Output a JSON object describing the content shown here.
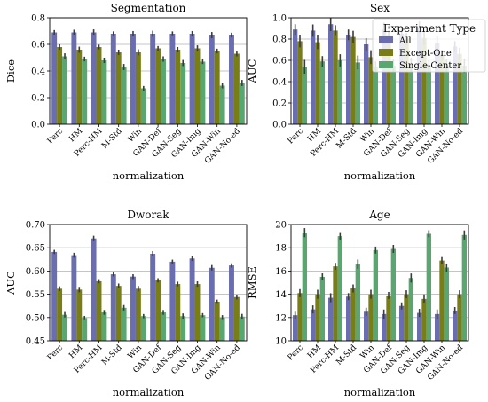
{
  "legend": {
    "title": "Experiment Type",
    "entries": [
      {
        "name": "All",
        "color": "#6a6db0"
      },
      {
        "name": "Except-One",
        "color": "#797d16"
      },
      {
        "name": "Single-Center",
        "color": "#5aa670"
      }
    ]
  },
  "chart_data": [
    {
      "type": "bar",
      "title": "Segmentation",
      "xlabel": "normalization",
      "ylabel": "Dice",
      "ylim": [
        0,
        0.8
      ],
      "yticks": [
        "0.0",
        "0.2",
        "0.4",
        "0.6",
        "0.8"
      ],
      "categories": [
        "Perc",
        "HM",
        "Perc-HM",
        "M-Std",
        "Win",
        "GAN-Def",
        "GAN-Seg",
        "GAN-Img",
        "GAN-Win",
        "GAN-No-ed"
      ],
      "series": [
        {
          "name": "All",
          "values": [
            0.69,
            0.69,
            0.69,
            0.68,
            0.68,
            0.68,
            0.68,
            0.68,
            0.67,
            0.67
          ]
        },
        {
          "name": "Except-One",
          "values": [
            0.58,
            0.56,
            0.58,
            0.54,
            0.54,
            0.57,
            0.56,
            0.57,
            0.55,
            0.53
          ]
        },
        {
          "name": "Single-Center",
          "values": [
            0.51,
            0.49,
            0.48,
            0.43,
            0.27,
            0.49,
            0.46,
            0.47,
            0.29,
            0.31
          ]
        }
      ],
      "grid": true
    },
    {
      "type": "bar",
      "title": "Sex",
      "xlabel": "normalization",
      "ylabel": "AUC",
      "ylim": [
        0.0,
        1.0
      ],
      "yticks": [
        "0.0",
        "0.2",
        "0.4",
        "0.6",
        "0.8",
        "1.0"
      ],
      "categories": [
        "Perc",
        "HM",
        "Perc-HM",
        "M-Std",
        "Win",
        "GAN-Def",
        "GAN-Seg",
        "GAN-Img",
        "GAN-Win",
        "GAN-No-ed"
      ],
      "series": [
        {
          "name": "All",
          "values": [
            0.89,
            0.88,
            0.94,
            0.84,
            0.75,
            0.89,
            0.85,
            0.91,
            0.76,
            0.73
          ]
        },
        {
          "name": "Except-One",
          "values": [
            0.78,
            0.77,
            0.88,
            0.82,
            0.63,
            0.83,
            0.8,
            0.81,
            0.65,
            0.66
          ]
        },
        {
          "name": "Single-Center",
          "values": [
            0.54,
            0.59,
            0.6,
            0.58,
            0.54,
            0.55,
            0.56,
            0.55,
            0.55,
            0.55
          ]
        }
      ],
      "grid": true
    },
    {
      "type": "bar",
      "title": "Dworak",
      "xlabel": "normalization",
      "ylabel": "AUC",
      "ylim": [
        0.45,
        0.7
      ],
      "yticks": [
        "0.45",
        "0.50",
        "0.55",
        "0.60",
        "0.65",
        "0.70"
      ],
      "categories": [
        "Perc",
        "HM",
        "Perc-HM",
        "M-Std",
        "Win",
        "GAN-Def",
        "GAN-Seg",
        "GAN-Img",
        "GAN-Win",
        "GAN-No-ed"
      ],
      "series": [
        {
          "name": "All",
          "values": [
            0.641,
            0.634,
            0.67,
            0.593,
            0.588,
            0.637,
            0.62,
            0.627,
            0.607,
            0.612
          ]
        },
        {
          "name": "Except-One",
          "values": [
            0.562,
            0.56,
            0.578,
            0.568,
            0.562,
            0.58,
            0.572,
            0.572,
            0.534,
            0.544
          ]
        },
        {
          "name": "Single-Center",
          "values": [
            0.506,
            0.499,
            0.511,
            0.521,
            0.503,
            0.511,
            0.503,
            0.505,
            0.5,
            0.502
          ]
        }
      ],
      "grid": true
    },
    {
      "type": "bar",
      "title": "Age",
      "xlabel": "normalization",
      "ylabel": "RMSE",
      "ylim": [
        10,
        20
      ],
      "yticks": [
        "10",
        "12",
        "14",
        "16",
        "18",
        "20"
      ],
      "categories": [
        "Perc",
        "HM",
        "Perc-HM",
        "M-Std",
        "Win",
        "GAN-Def",
        "GAN-Seg",
        "GAN-Img",
        "GAN-Win",
        "GAN-No-ed"
      ],
      "series": [
        {
          "name": "All",
          "values": [
            12.2,
            12.7,
            13.7,
            13.8,
            12.5,
            12.3,
            13.0,
            12.4,
            12.3,
            12.6
          ]
        },
        {
          "name": "Except-One",
          "values": [
            14.1,
            14.0,
            16.4,
            14.5,
            14.0,
            13.9,
            14.0,
            13.6,
            16.9,
            14.0
          ]
        },
        {
          "name": "Single-Center",
          "values": [
            19.3,
            15.5,
            19.0,
            16.6,
            17.8,
            17.9,
            15.4,
            19.2,
            16.3,
            19.1
          ]
        }
      ],
      "grid": true
    }
  ]
}
